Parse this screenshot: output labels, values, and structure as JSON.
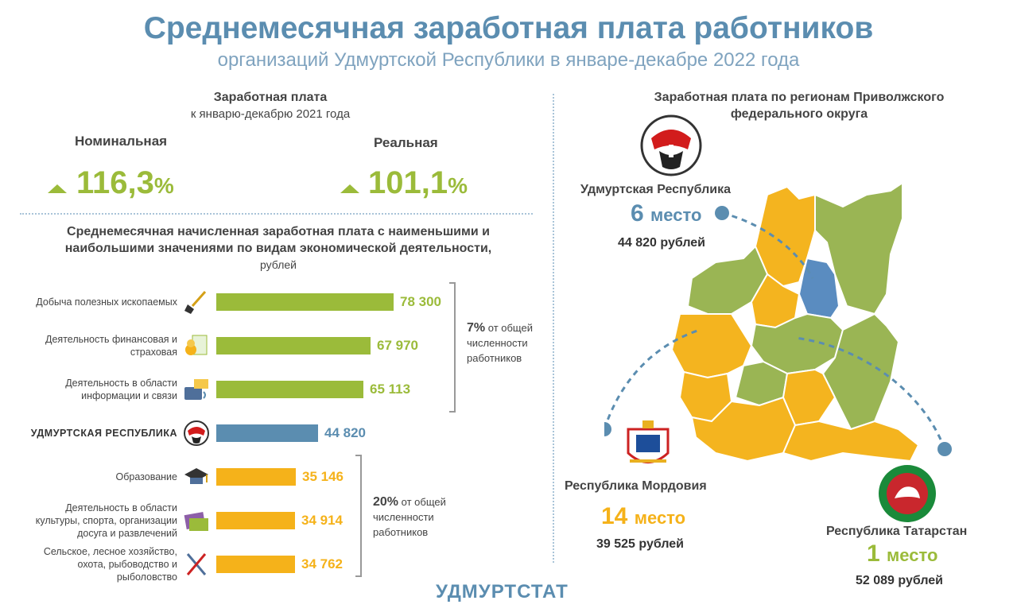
{
  "header": {
    "title": "Среднемесячная заработная плата работников",
    "subtitle": "организаций Удмуртской Республики в январе-декабре 2022 года"
  },
  "growth": {
    "heading": "Заработная плата",
    "subheading": "к январю-декабрю 2021 года",
    "nominal": {
      "label": "Номинальная",
      "value": "116,3",
      "unit": "%"
    },
    "real": {
      "label": "Реальная",
      "value": "101,1",
      "unit": "%"
    }
  },
  "industry_chart": {
    "title_line1": "Среднемесячная начисленная заработная плата с наименьшими и",
    "title_line2": "наибольшими значениями по видам экономической деятельности,",
    "unit_line": "рублей",
    "top_note": {
      "pct": "7%",
      "line1": "от общей",
      "line2": "численности",
      "line3": "работников"
    },
    "bottom_note": {
      "pct": "20%",
      "line1": "от общей",
      "line2": "численности",
      "line3": "работников"
    }
  },
  "chart_data": {
    "type": "bar",
    "orientation": "horizontal",
    "categories": [
      "Добыча полезных ископаемых",
      "Деятельность финансовая и страховая",
      "Деятельность в области информации и связи",
      "УДМУРТСКАЯ РЕСПУБЛИКА",
      "Образование",
      "Деятельность в области культуры, спорта, организации досуга и развлечений",
      "Сельское, лесное хозяйство, охота, рыбоводство и рыболовство"
    ],
    "category_lines": [
      [
        "Добыча полезных ископаемых"
      ],
      [
        "Деятельность финансовая и",
        "страховая"
      ],
      [
        "Деятельность в области",
        "информации и связи"
      ],
      [
        "УДМУРТСКАЯ РЕСПУБЛИКА"
      ],
      [
        "Образование"
      ],
      [
        "Деятельность в области",
        "культуры, спорта, организации",
        "досуга и развлечений"
      ],
      [
        "Сельское, лесное хозяйство,",
        "охота, рыбоводство и",
        "рыболовство"
      ]
    ],
    "values": [
      78300,
      67970,
      65113,
      44820,
      35146,
      34914,
      34762
    ],
    "value_labels": [
      "78 300",
      "67 970",
      "65 113",
      "44 820",
      "35 146",
      "34 914",
      "34 762"
    ],
    "colors": [
      "#9bbb3a",
      "#9bbb3a",
      "#9bbb3a",
      "#5b8db0",
      "#f5b21a",
      "#f5b21a",
      "#f5b21a"
    ],
    "icons": [
      "shovel-icon",
      "finance-icon",
      "phone-icon",
      "udmurt-emblem-icon",
      "graduation-cap-icon",
      "culture-icon",
      "farm-tools-icon"
    ],
    "title": "",
    "xlabel": "",
    "ylabel": ""
  },
  "regions": {
    "heading_line1": "Заработная плата по регионам Приволжского",
    "heading_line2": "федерального округа",
    "udmurtia": {
      "name": "Удмуртская Республика",
      "rank": "6",
      "rank_word": "место",
      "salary": "44 820 рублей"
    },
    "mordovia": {
      "name": "Республика Мордовия",
      "rank": "14",
      "rank_word": "место",
      "salary": "39 525 рублей"
    },
    "tatarstan": {
      "name": "Республика Татарстан",
      "rank": "1",
      "rank_word": "место",
      "salary": "52 089 рублей"
    }
  },
  "colors": {
    "green": "#9bbb3a",
    "blue": "#5b8db0",
    "orange": "#f5b21a",
    "map_green": "#9ab554",
    "map_orange": "#f4b41f",
    "map_blue": "#5a8cc0"
  },
  "footer": {
    "brand": "УДМУРТСТАТ"
  }
}
